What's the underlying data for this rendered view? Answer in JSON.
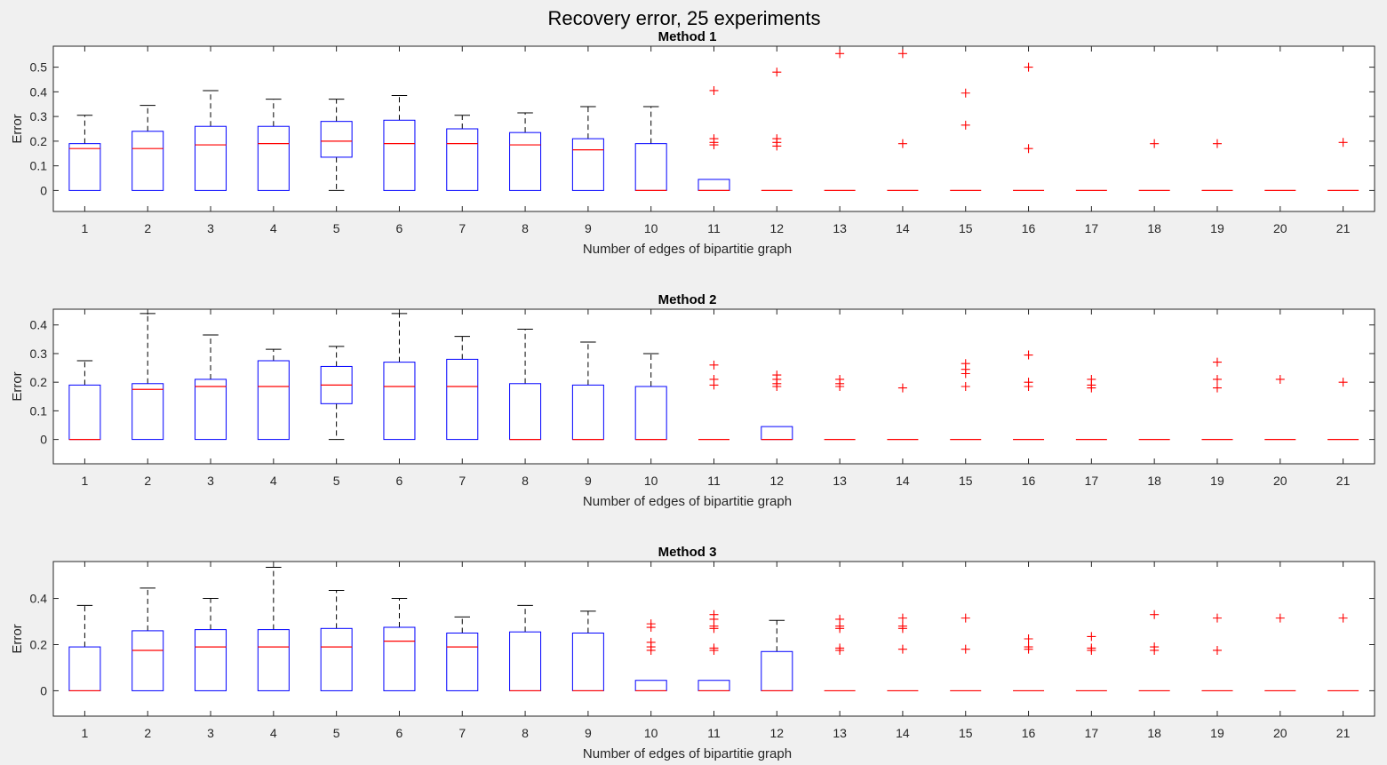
{
  "figure": {
    "title": "Recovery error, 25 experiments"
  },
  "chart_data": [
    {
      "type": "boxplot",
      "title": "Method 1",
      "xlabel": "Number of edges of bipartitie graph",
      "ylabel": "Error",
      "categories": [
        "1",
        "2",
        "3",
        "4",
        "5",
        "6",
        "7",
        "8",
        "9",
        "10",
        "11",
        "12",
        "13",
        "14",
        "15",
        "16",
        "17",
        "18",
        "19",
        "20",
        "21"
      ],
      "ylim": [
        -0.085,
        0.585
      ],
      "yticks": [
        0,
        0.1,
        0.2,
        0.3,
        0.4,
        0.5
      ],
      "ytick_labels": [
        "0",
        "0.1",
        "0.2",
        "0.3",
        "0.4",
        "0.5"
      ],
      "boxes": [
        {
          "min": 0,
          "q1": 0,
          "median": 0.17,
          "q3": 0.19,
          "max": 0.305,
          "outliers": []
        },
        {
          "min": 0,
          "q1": 0,
          "median": 0.17,
          "q3": 0.24,
          "max": 0.345,
          "outliers": []
        },
        {
          "min": 0,
          "q1": 0,
          "median": 0.185,
          "q3": 0.26,
          "max": 0.405,
          "outliers": []
        },
        {
          "min": 0,
          "q1": 0,
          "median": 0.19,
          "q3": 0.26,
          "max": 0.37,
          "outliers": []
        },
        {
          "min": 0,
          "q1": 0.135,
          "median": 0.2,
          "q3": 0.28,
          "max": 0.37,
          "outliers": []
        },
        {
          "min": 0,
          "q1": 0,
          "median": 0.19,
          "q3": 0.285,
          "max": 0.385,
          "outliers": []
        },
        {
          "min": 0,
          "q1": 0,
          "median": 0.19,
          "q3": 0.25,
          "max": 0.305,
          "outliers": []
        },
        {
          "min": 0,
          "q1": 0,
          "median": 0.185,
          "q3": 0.235,
          "max": 0.315,
          "outliers": []
        },
        {
          "min": 0,
          "q1": 0,
          "median": 0.165,
          "q3": 0.21,
          "max": 0.34,
          "outliers": []
        },
        {
          "min": 0,
          "q1": 0,
          "median": 0,
          "q3": 0.19,
          "max": 0.34,
          "outliers": []
        },
        {
          "min": 0,
          "q1": 0,
          "median": 0,
          "q3": 0.045,
          "max": 0.045,
          "outliers": [
            0.405,
            0.21,
            0.195,
            0.185
          ]
        },
        {
          "min": 0,
          "q1": 0,
          "median": 0,
          "q3": 0,
          "max": 0,
          "outliers": [
            0.48,
            0.21,
            0.195,
            0.18
          ]
        },
        {
          "min": 0,
          "q1": 0,
          "median": 0,
          "q3": 0,
          "max": 0,
          "outliers": [
            0.555
          ]
        },
        {
          "min": 0,
          "q1": 0,
          "median": 0,
          "q3": 0,
          "max": 0,
          "outliers": [
            0.555,
            0.19
          ]
        },
        {
          "min": 0,
          "q1": 0,
          "median": 0,
          "q3": 0,
          "max": 0,
          "outliers": [
            0.395,
            0.265
          ]
        },
        {
          "min": 0,
          "q1": 0,
          "median": 0,
          "q3": 0,
          "max": 0,
          "outliers": [
            0.5,
            0.17
          ]
        },
        {
          "min": 0,
          "q1": 0,
          "median": 0,
          "q3": 0,
          "max": 0,
          "outliers": []
        },
        {
          "min": 0,
          "q1": 0,
          "median": 0,
          "q3": 0,
          "max": 0,
          "outliers": [
            0.19
          ]
        },
        {
          "min": 0,
          "q1": 0,
          "median": 0,
          "q3": 0,
          "max": 0,
          "outliers": [
            0.19
          ]
        },
        {
          "min": 0,
          "q1": 0,
          "median": 0,
          "q3": 0,
          "max": 0,
          "outliers": []
        },
        {
          "min": 0,
          "q1": 0,
          "median": 0,
          "q3": 0,
          "max": 0,
          "outliers": [
            0.195
          ]
        }
      ]
    },
    {
      "type": "boxplot",
      "title": "Method 2",
      "xlabel": "Number of edges of bipartitie graph",
      "ylabel": "Error",
      "categories": [
        "1",
        "2",
        "3",
        "4",
        "5",
        "6",
        "7",
        "8",
        "9",
        "10",
        "11",
        "12",
        "13",
        "14",
        "15",
        "16",
        "17",
        "18",
        "19",
        "20",
        "21"
      ],
      "ylim": [
        -0.085,
        0.455
      ],
      "yticks": [
        0,
        0.1,
        0.2,
        0.3,
        0.4
      ],
      "ytick_labels": [
        "0",
        "0.1",
        "0.2",
        "0.3",
        "0.4"
      ],
      "boxes": [
        {
          "min": 0,
          "q1": 0,
          "median": 0,
          "q3": 0.19,
          "max": 0.275,
          "outliers": []
        },
        {
          "min": 0,
          "q1": 0,
          "median": 0.175,
          "q3": 0.195,
          "max": 0.44,
          "outliers": []
        },
        {
          "min": 0,
          "q1": 0,
          "median": 0.185,
          "q3": 0.21,
          "max": 0.365,
          "outliers": []
        },
        {
          "min": 0,
          "q1": 0,
          "median": 0.185,
          "q3": 0.275,
          "max": 0.315,
          "outliers": []
        },
        {
          "min": 0,
          "q1": 0.125,
          "median": 0.19,
          "q3": 0.255,
          "max": 0.325,
          "outliers": []
        },
        {
          "min": 0,
          "q1": 0,
          "median": 0.185,
          "q3": 0.27,
          "max": 0.44,
          "outliers": []
        },
        {
          "min": 0,
          "q1": 0,
          "median": 0.185,
          "q3": 0.28,
          "max": 0.36,
          "outliers": []
        },
        {
          "min": 0,
          "q1": 0,
          "median": 0,
          "q3": 0.195,
          "max": 0.385,
          "outliers": []
        },
        {
          "min": 0,
          "q1": 0,
          "median": 0,
          "q3": 0.19,
          "max": 0.34,
          "outliers": []
        },
        {
          "min": 0,
          "q1": 0,
          "median": 0,
          "q3": 0.185,
          "max": 0.3,
          "outliers": []
        },
        {
          "min": 0,
          "q1": 0,
          "median": 0,
          "q3": 0,
          "max": 0,
          "outliers": [
            0.26,
            0.21,
            0.19
          ]
        },
        {
          "min": 0,
          "q1": 0,
          "median": 0,
          "q3": 0.045,
          "max": 0.045,
          "outliers": [
            0.225,
            0.21,
            0.195,
            0.185
          ]
        },
        {
          "min": 0,
          "q1": 0,
          "median": 0,
          "q3": 0,
          "max": 0,
          "outliers": [
            0.21,
            0.195,
            0.185
          ]
        },
        {
          "min": 0,
          "q1": 0,
          "median": 0,
          "q3": 0,
          "max": 0,
          "outliers": [
            0.18
          ]
        },
        {
          "min": 0,
          "q1": 0,
          "median": 0,
          "q3": 0,
          "max": 0,
          "outliers": [
            0.265,
            0.245,
            0.23,
            0.185
          ]
        },
        {
          "min": 0,
          "q1": 0,
          "median": 0,
          "q3": 0,
          "max": 0,
          "outliers": [
            0.295,
            0.2,
            0.185
          ]
        },
        {
          "min": 0,
          "q1": 0,
          "median": 0,
          "q3": 0,
          "max": 0,
          "outliers": [
            0.21,
            0.19,
            0.18
          ]
        },
        {
          "min": 0,
          "q1": 0,
          "median": 0,
          "q3": 0,
          "max": 0,
          "outliers": []
        },
        {
          "min": 0,
          "q1": 0,
          "median": 0,
          "q3": 0,
          "max": 0,
          "outliers": [
            0.27,
            0.21,
            0.18
          ]
        },
        {
          "min": 0,
          "q1": 0,
          "median": 0,
          "q3": 0,
          "max": 0,
          "outliers": [
            0.21
          ]
        },
        {
          "min": 0,
          "q1": 0,
          "median": 0,
          "q3": 0,
          "max": 0,
          "outliers": [
            0.2
          ]
        }
      ]
    },
    {
      "type": "boxplot",
      "title": "Method 3",
      "xlabel": "Number of edges of bipartitie graph",
      "ylabel": "Error",
      "categories": [
        "1",
        "2",
        "3",
        "4",
        "5",
        "6",
        "7",
        "8",
        "9",
        "10",
        "11",
        "12",
        "13",
        "14",
        "15",
        "16",
        "17",
        "18",
        "19",
        "20",
        "21"
      ],
      "ylim": [
        -0.11,
        0.56
      ],
      "yticks": [
        0,
        0.2,
        0.4
      ],
      "ytick_labels": [
        "0",
        "0.2",
        "0.4"
      ],
      "boxes": [
        {
          "min": 0,
          "q1": 0,
          "median": 0,
          "q3": 0.19,
          "max": 0.37,
          "outliers": []
        },
        {
          "min": 0,
          "q1": 0,
          "median": 0.175,
          "q3": 0.26,
          "max": 0.445,
          "outliers": []
        },
        {
          "min": 0,
          "q1": 0,
          "median": 0.19,
          "q3": 0.265,
          "max": 0.4,
          "outliers": []
        },
        {
          "min": 0,
          "q1": 0,
          "median": 0.19,
          "q3": 0.265,
          "max": 0.535,
          "outliers": []
        },
        {
          "min": 0,
          "q1": 0,
          "median": 0.19,
          "q3": 0.27,
          "max": 0.435,
          "outliers": []
        },
        {
          "min": 0,
          "q1": 0,
          "median": 0.215,
          "q3": 0.275,
          "max": 0.4,
          "outliers": []
        },
        {
          "min": 0,
          "q1": 0,
          "median": 0.19,
          "q3": 0.25,
          "max": 0.32,
          "outliers": []
        },
        {
          "min": 0,
          "q1": 0,
          "median": 0,
          "q3": 0.255,
          "max": 0.37,
          "outliers": []
        },
        {
          "min": 0,
          "q1": 0,
          "median": 0,
          "q3": 0.25,
          "max": 0.345,
          "outliers": []
        },
        {
          "min": 0,
          "q1": 0,
          "median": 0,
          "q3": 0.045,
          "max": 0.045,
          "outliers": [
            0.29,
            0.275,
            0.21,
            0.19,
            0.175
          ]
        },
        {
          "min": 0,
          "q1": 0,
          "median": 0,
          "q3": 0.045,
          "max": 0.045,
          "outliers": [
            0.33,
            0.31,
            0.28,
            0.27,
            0.185,
            0.175
          ]
        },
        {
          "min": 0,
          "q1": 0,
          "median": 0,
          "q3": 0.17,
          "max": 0.305,
          "outliers": []
        },
        {
          "min": 0,
          "q1": 0,
          "median": 0,
          "q3": 0,
          "max": 0,
          "outliers": [
            0.31,
            0.28,
            0.27,
            0.185,
            0.175
          ]
        },
        {
          "min": 0,
          "q1": 0,
          "median": 0,
          "q3": 0,
          "max": 0,
          "outliers": [
            0.315,
            0.28,
            0.27,
            0.18
          ]
        },
        {
          "min": 0,
          "q1": 0,
          "median": 0,
          "q3": 0,
          "max": 0,
          "outliers": [
            0.315,
            0.18
          ]
        },
        {
          "min": 0,
          "q1": 0,
          "median": 0,
          "q3": 0,
          "max": 0,
          "outliers": [
            0.225,
            0.19,
            0.18
          ]
        },
        {
          "min": 0,
          "q1": 0,
          "median": 0,
          "q3": 0,
          "max": 0,
          "outliers": [
            0.235,
            0.185,
            0.175
          ]
        },
        {
          "min": 0,
          "q1": 0,
          "median": 0,
          "q3": 0,
          "max": 0,
          "outliers": [
            0.33,
            0.19,
            0.175
          ]
        },
        {
          "min": 0,
          "q1": 0,
          "median": 0,
          "q3": 0,
          "max": 0,
          "outliers": [
            0.315,
            0.175
          ]
        },
        {
          "min": 0,
          "q1": 0,
          "median": 0,
          "q3": 0,
          "max": 0,
          "outliers": [
            0.315
          ]
        },
        {
          "min": 0,
          "q1": 0,
          "median": 0,
          "q3": 0,
          "max": 0,
          "outliers": [
            0.315
          ]
        }
      ]
    }
  ],
  "colors": {
    "box": "#0000ff",
    "median": "#ff0000",
    "outlier": "#ff0000",
    "whisker": "#000000",
    "axes_bg": "#ffffff",
    "figure_bg": "#f0f0f0",
    "text": "#262626"
  }
}
